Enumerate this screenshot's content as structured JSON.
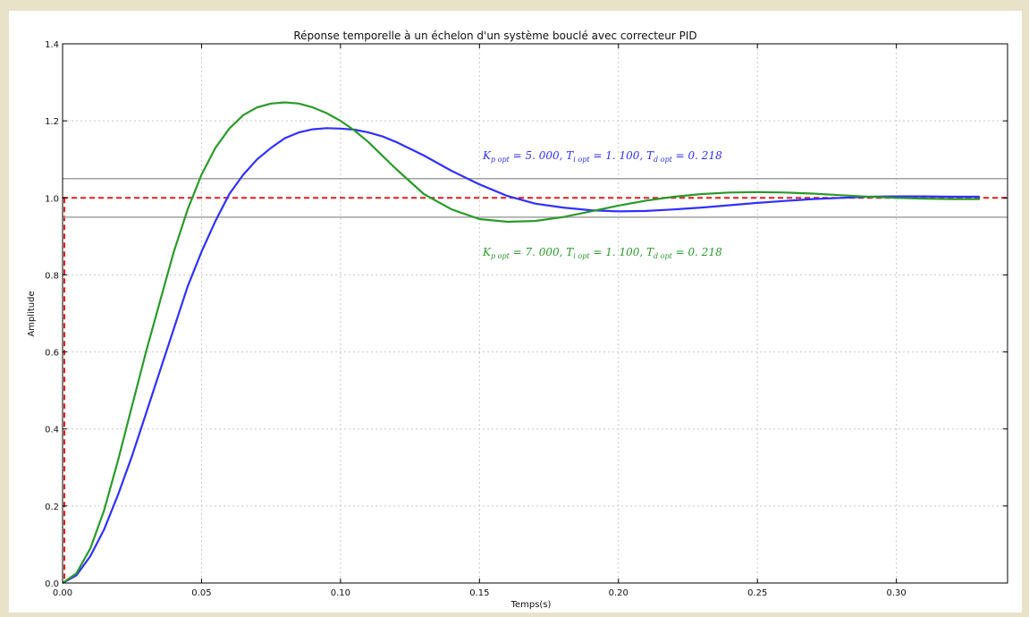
{
  "chart_data": {
    "type": "line",
    "title": "Réponse temporelle à un échelon d'un système bouclé avec correcteur PID",
    "xlabel": "Temps(s)",
    "ylabel": "Amplitude",
    "xlim": [
      0,
      0.34
    ],
    "ylim": [
      0,
      1.4
    ],
    "x_ticks": [
      "0.00",
      "0.05",
      "0.10",
      "0.15",
      "0.20",
      "0.25",
      "0.30"
    ],
    "y_ticks": [
      "0.0",
      "0.2",
      "0.4",
      "0.6",
      "0.8",
      "1.0",
      "1.2",
      "1.4"
    ],
    "grid": true,
    "reference_lines": [
      {
        "kind": "step-input",
        "value": 1.0,
        "color": "#e02020",
        "style": "dashed"
      },
      {
        "kind": "tolerance-upper",
        "value": 1.05,
        "color": "#a0a0a0"
      },
      {
        "kind": "tolerance-lower",
        "value": 0.95,
        "color": "#a0a0a0"
      }
    ],
    "series": [
      {
        "color": "#3030ff",
        "label": "K_popt = 5.000, T_iopt = 1.100, T_dopt = 0.218",
        "x": [
          0,
          0.005,
          0.01,
          0.015,
          0.02,
          0.025,
          0.03,
          0.035,
          0.04,
          0.045,
          0.05,
          0.055,
          0.06,
          0.065,
          0.07,
          0.075,
          0.08,
          0.085,
          0.09,
          0.095,
          0.1,
          0.105,
          0.11,
          0.115,
          0.12,
          0.13,
          0.14,
          0.15,
          0.16,
          0.17,
          0.18,
          0.19,
          0.2,
          0.21,
          0.22,
          0.23,
          0.24,
          0.25,
          0.26,
          0.27,
          0.28,
          0.29,
          0.3,
          0.31,
          0.32,
          0.33
        ],
        "y": [
          0.0,
          0.02,
          0.07,
          0.14,
          0.23,
          0.33,
          0.44,
          0.55,
          0.66,
          0.77,
          0.86,
          0.94,
          1.01,
          1.06,
          1.1,
          1.13,
          1.155,
          1.17,
          1.178,
          1.181,
          1.18,
          1.177,
          1.17,
          1.16,
          1.145,
          1.11,
          1.07,
          1.035,
          1.005,
          0.985,
          0.975,
          0.968,
          0.965,
          0.966,
          0.97,
          0.975,
          0.981,
          0.987,
          0.992,
          0.997,
          1.0,
          1.003,
          1.004,
          1.004,
          1.003,
          1.003
        ]
      },
      {
        "color": "#2a9a2a",
        "label": "K_popt = 7.000, T_iopt = 1.100, T_dopt = 0.218",
        "x": [
          0,
          0.005,
          0.01,
          0.015,
          0.02,
          0.025,
          0.03,
          0.035,
          0.04,
          0.045,
          0.05,
          0.055,
          0.06,
          0.065,
          0.07,
          0.075,
          0.08,
          0.085,
          0.09,
          0.095,
          0.1,
          0.105,
          0.11,
          0.115,
          0.12,
          0.13,
          0.14,
          0.15,
          0.16,
          0.17,
          0.18,
          0.19,
          0.2,
          0.21,
          0.22,
          0.23,
          0.24,
          0.25,
          0.26,
          0.27,
          0.28,
          0.29,
          0.3,
          0.31,
          0.32,
          0.33
        ],
        "y": [
          0.0,
          0.025,
          0.09,
          0.19,
          0.32,
          0.46,
          0.6,
          0.73,
          0.86,
          0.97,
          1.06,
          1.13,
          1.18,
          1.215,
          1.235,
          1.245,
          1.248,
          1.245,
          1.235,
          1.22,
          1.2,
          1.175,
          1.145,
          1.11,
          1.075,
          1.01,
          0.97,
          0.945,
          0.938,
          0.94,
          0.95,
          0.965,
          0.98,
          0.993,
          1.003,
          1.01,
          1.014,
          1.015,
          1.014,
          1.011,
          1.007,
          1.003,
          1.0,
          0.998,
          0.997,
          0.997
        ]
      }
    ]
  }
}
